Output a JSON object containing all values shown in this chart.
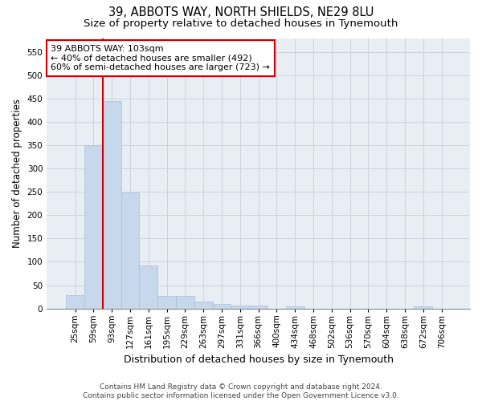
{
  "title1": "39, ABBOTS WAY, NORTH SHIELDS, NE29 8LU",
  "title2": "Size of property relative to detached houses in Tynemouth",
  "xlabel": "Distribution of detached houses by size in Tynemouth",
  "ylabel": "Number of detached properties",
  "bar_color": "#c8d8ec",
  "bar_edgecolor": "#a8c0d8",
  "grid_color": "#c8d0dc",
  "background_color": "#e8eef4",
  "categories": [
    "25sqm",
    "59sqm",
    "93sqm",
    "127sqm",
    "161sqm",
    "195sqm",
    "229sqm",
    "263sqm",
    "297sqm",
    "331sqm",
    "366sqm",
    "400sqm",
    "434sqm",
    "468sqm",
    "502sqm",
    "536sqm",
    "570sqm",
    "604sqm",
    "638sqm",
    "672sqm",
    "706sqm"
  ],
  "values": [
    28,
    350,
    445,
    248,
    93,
    26,
    26,
    14,
    10,
    7,
    6,
    0,
    5,
    0,
    0,
    0,
    0,
    0,
    0,
    5,
    0
  ],
  "ylim": [
    0,
    580
  ],
  "yticks": [
    0,
    50,
    100,
    150,
    200,
    250,
    300,
    350,
    400,
    450,
    500,
    550
  ],
  "vline_index": 2,
  "vline_color": "#cc0000",
  "annotation_text": "39 ABBOTS WAY: 103sqm\n← 40% of detached houses are smaller (492)\n60% of semi-detached houses are larger (723) →",
  "annotation_box_facecolor": "#ffffff",
  "annotation_box_edgecolor": "#cc0000",
  "footer1": "Contains HM Land Registry data © Crown copyright and database right 2024.",
  "footer2": "Contains public sector information licensed under the Open Government Licence v3.0.",
  "title1_fontsize": 10.5,
  "title2_fontsize": 9.5,
  "ylabel_fontsize": 8.5,
  "xlabel_fontsize": 9,
  "tick_fontsize": 7.5,
  "annotation_fontsize": 8,
  "footer_fontsize": 6.5
}
